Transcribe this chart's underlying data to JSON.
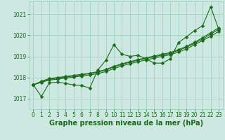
{
  "xlabel": "Graphe pression niveau de la mer (hPa)",
  "bg_color": "#cce8e0",
  "grid_color": "#99ccbb",
  "line_color": "#1a6b1a",
  "xlim": [
    -0.5,
    23.5
  ],
  "ylim": [
    1016.5,
    1021.6
  ],
  "yticks": [
    1017,
    1018,
    1019,
    1020,
    1021
  ],
  "xticks": [
    0,
    1,
    2,
    3,
    4,
    5,
    6,
    7,
    8,
    9,
    10,
    11,
    12,
    13,
    14,
    15,
    16,
    17,
    18,
    19,
    20,
    21,
    22,
    23
  ],
  "series_jagged": [
    1017.65,
    1017.1,
    1017.75,
    1017.78,
    1017.72,
    1017.65,
    1017.62,
    1017.5,
    1018.35,
    1018.82,
    1019.55,
    1019.1,
    1019.0,
    1019.05,
    1018.88,
    1018.68,
    1018.68,
    1018.88,
    1019.65,
    1019.92,
    1020.22,
    1020.45,
    1021.35,
    1020.28
  ],
  "series_linear1": [
    1017.65,
    1017.77,
    1017.88,
    1017.92,
    1017.97,
    1018.02,
    1018.07,
    1018.12,
    1018.18,
    1018.28,
    1018.42,
    1018.55,
    1018.65,
    1018.75,
    1018.83,
    1018.92,
    1019.0,
    1019.08,
    1019.2,
    1019.35,
    1019.55,
    1019.75,
    1019.95,
    1020.18
  ],
  "series_linear2": [
    1017.65,
    1017.8,
    1017.92,
    1017.97,
    1018.02,
    1018.07,
    1018.12,
    1018.18,
    1018.25,
    1018.35,
    1018.5,
    1018.62,
    1018.72,
    1018.82,
    1018.9,
    1018.98,
    1019.06,
    1019.14,
    1019.28,
    1019.43,
    1019.62,
    1019.82,
    1020.05,
    1020.28
  ],
  "series_linear3": [
    1017.65,
    1017.82,
    1017.95,
    1018.0,
    1018.05,
    1018.1,
    1018.15,
    1018.2,
    1018.28,
    1018.38,
    1018.53,
    1018.65,
    1018.75,
    1018.85,
    1018.93,
    1019.02,
    1019.1,
    1019.18,
    1019.32,
    1019.47,
    1019.67,
    1019.88,
    1020.12,
    1020.35
  ],
  "markersize": 2.5,
  "linewidth": 0.8,
  "xlabel_fontsize": 7,
  "tick_fontsize": 5.5
}
